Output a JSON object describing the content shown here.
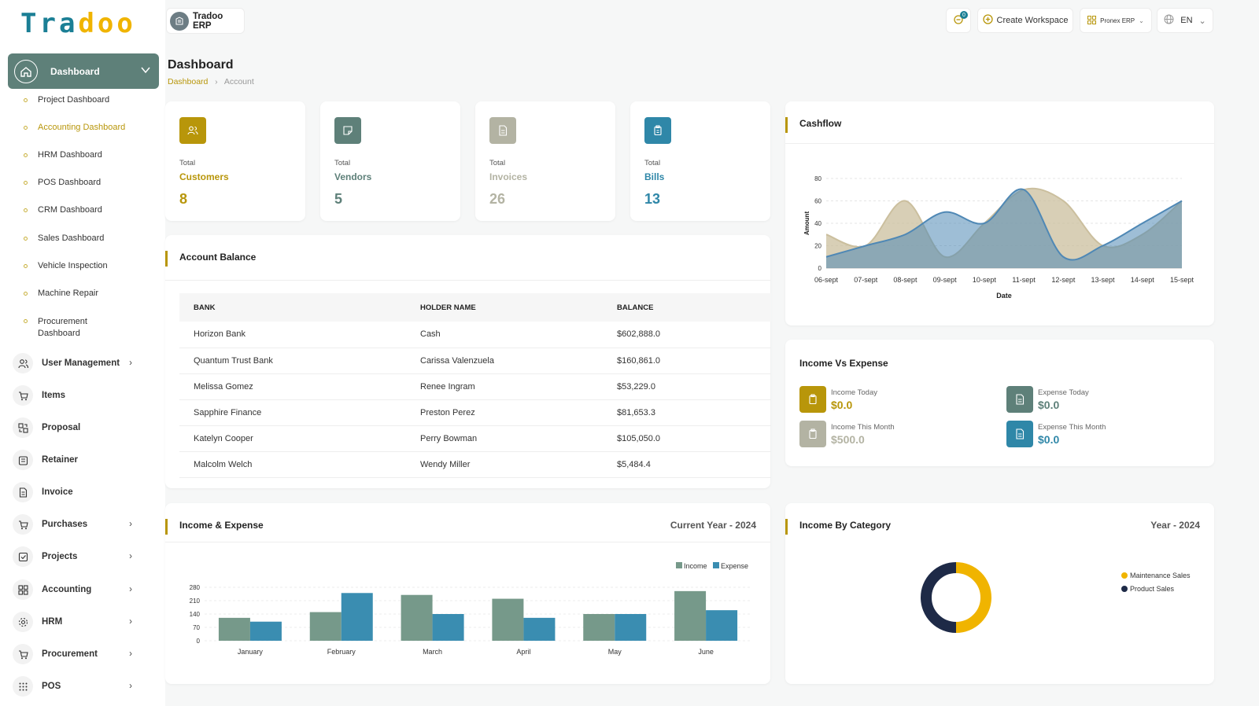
{
  "logo": {
    "part1": "Tra",
    "part2": "doo"
  },
  "colors": {
    "teal": "#1b7f95",
    "gold": "#b8960a",
    "sage": "#5e8079",
    "navy": "#1e2a47",
    "amber": "#f0b400"
  },
  "sidebar": {
    "active": {
      "label": "Dashboard",
      "icon": "home-icon"
    },
    "sub_items": [
      {
        "label": "Project Dashboard"
      },
      {
        "label": "Accounting Dashboard"
      },
      {
        "label": "HRM Dashboard"
      },
      {
        "label": "POS Dashboard"
      },
      {
        "label": "CRM Dashboard"
      },
      {
        "label": "Sales Dashboard"
      },
      {
        "label": "Vehicle Inspection"
      },
      {
        "label": "Machine Repair"
      },
      {
        "label": "Procurement Dashboard"
      }
    ],
    "items": [
      {
        "label": "User Management",
        "icon": "users-icon"
      },
      {
        "label": "Items",
        "icon": "cart-icon"
      },
      {
        "label": "Proposal",
        "icon": "proposal-icon"
      },
      {
        "label": "Retainer",
        "icon": "retainer-icon"
      },
      {
        "label": "Invoice",
        "icon": "invoice-icon"
      },
      {
        "label": "Purchases",
        "icon": "cart-icon"
      },
      {
        "label": "Projects",
        "icon": "check-square-icon"
      },
      {
        "label": "Accounting",
        "icon": "grid-icon"
      },
      {
        "label": "HRM",
        "icon": "hrm-icon"
      },
      {
        "label": "Procurement",
        "icon": "cart-icon"
      },
      {
        "label": "POS",
        "icon": "dots-grid-icon"
      }
    ]
  },
  "topbar": {
    "brand": "Tradoo ERP",
    "notification_count": "0",
    "create_workspace": "Create Workspace",
    "workspace": "Pronex ERP",
    "language": "EN"
  },
  "page": {
    "title": "Dashboard",
    "breadcrumb": [
      "Dashboard",
      "Account"
    ]
  },
  "stats": [
    {
      "total": "Total",
      "name": "Customers",
      "value": "8",
      "color": "#b8960a"
    },
    {
      "total": "Total",
      "name": "Vendors",
      "value": "5",
      "color": "#5e8079"
    },
    {
      "total": "Total",
      "name": "Invoices",
      "value": "26",
      "color": "#b3b3a3"
    },
    {
      "total": "Total",
      "name": "Bills",
      "value": "13",
      "color": "#2f87a8"
    }
  ],
  "account_balance": {
    "title": "Account Balance",
    "headers": [
      "BANK",
      "HOLDER NAME",
      "BALANCE"
    ],
    "rows": [
      [
        "Horizon Bank",
        "Cash",
        "$602,888.0"
      ],
      [
        "Quantum Trust Bank",
        "Carissa Valenzuela",
        "$160,861.0"
      ],
      [
        "Melissa Gomez",
        "Renee Ingram",
        "$53,229.0"
      ],
      [
        "Sapphire Finance",
        "Preston Perez",
        "$81,653.3"
      ],
      [
        "Katelyn Cooper",
        "Perry Bowman",
        "$105,050.0"
      ],
      [
        "Malcolm Welch",
        "Wendy Miller",
        "$5,484.4"
      ]
    ]
  },
  "income_vs_expense": {
    "title": "Income Vs Expense",
    "items": [
      {
        "label": "Income Today",
        "value": "$0.0",
        "color": "#b8960a"
      },
      {
        "label": "Expense Today",
        "value": "$0.0",
        "color": "#5e8079"
      },
      {
        "label": "Income This Month",
        "value": "$500.0",
        "color": "#b3b3a3"
      },
      {
        "label": "Expense This Month",
        "value": "$0.0",
        "color": "#2f87a8"
      }
    ]
  },
  "cashflow_card": {
    "title": "Cashflow"
  },
  "income_expense_card": {
    "title": "Income & Expense",
    "period": "Current Year - 2024"
  },
  "category_card": {
    "title": "Income By Category",
    "period": "Year - 2024"
  },
  "chart_data": [
    {
      "type": "area",
      "x": [
        "06-sept",
        "07-sept",
        "08-sept",
        "09-sept",
        "10-sept",
        "11-sept",
        "12-sept",
        "13-sept",
        "14-sept",
        "15-sept"
      ],
      "series": [
        {
          "values": [
            30,
            20,
            60,
            10,
            40,
            70,
            60,
            20,
            30,
            60
          ],
          "color": "#cbbf9e"
        },
        {
          "values": [
            10,
            20,
            30,
            50,
            40,
            70,
            10,
            20,
            40,
            60
          ],
          "color": "#4f88b5"
        }
      ],
      "xlabel": "Date",
      "ylabel": "Amount",
      "ylim": [
        0,
        80
      ],
      "yticks": [
        0,
        20,
        40,
        60,
        80
      ]
    },
    {
      "type": "bar",
      "categories": [
        "January",
        "February",
        "March",
        "April",
        "May",
        "June"
      ],
      "series": [
        {
          "name": "Income",
          "values": [
            120,
            150,
            240,
            220,
            140,
            260
          ],
          "color": "#76998a"
        },
        {
          "name": "Expense",
          "values": [
            100,
            250,
            140,
            120,
            140,
            160
          ],
          "color": "#3a8db1"
        }
      ],
      "ylim": [
        0,
        280
      ],
      "yticks": [
        0,
        70,
        140,
        210,
        280
      ]
    },
    {
      "type": "pie",
      "labels": [
        "Maintenance Sales",
        "Product Sales"
      ],
      "values": [
        50,
        50
      ],
      "colors": [
        "#f0b400",
        "#1e2a47"
      ],
      "legend": "top-right"
    }
  ]
}
